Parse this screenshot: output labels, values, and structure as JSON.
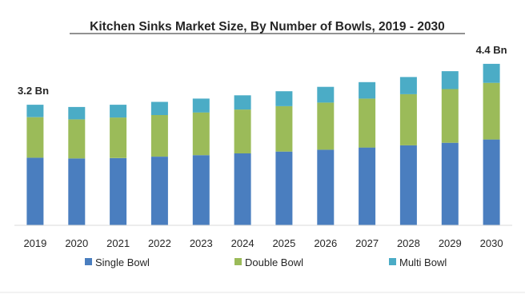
{
  "chart_data": {
    "type": "bar",
    "stacked": true,
    "title": "Kitchen Sinks Market Size, By Number of Bowls, 2019 - 2030",
    "categories": [
      "2019",
      "2020",
      "2021",
      "2022",
      "2023",
      "2024",
      "2025",
      "2026",
      "2027",
      "2028",
      "2029",
      "2030"
    ],
    "series": [
      {
        "name": "Single Bowl",
        "color": "#4a7ebf",
        "values": [
          1.85,
          1.83,
          1.84,
          1.88,
          1.92,
          1.97,
          2.02,
          2.07,
          2.13,
          2.19,
          2.26,
          2.35
        ]
      },
      {
        "name": "Double Bowl",
        "color": "#9bbb59",
        "values": [
          1.11,
          1.07,
          1.11,
          1.14,
          1.17,
          1.2,
          1.24,
          1.29,
          1.34,
          1.4,
          1.47,
          1.55
        ]
      },
      {
        "name": "Multi Bowl",
        "color": "#4bacc6",
        "values": [
          0.34,
          0.34,
          0.35,
          0.36,
          0.38,
          0.39,
          0.41,
          0.43,
          0.45,
          0.47,
          0.49,
          0.52
        ]
      }
    ],
    "annotations": [
      {
        "category": "2019",
        "label": "3.2 Bn"
      },
      {
        "category": "2030",
        "label": "4.4 Bn"
      }
    ],
    "ylim": [
      0,
      4.9
    ],
    "xlabel": "",
    "ylabel": "",
    "grid": false,
    "legend_position": "bottom"
  }
}
